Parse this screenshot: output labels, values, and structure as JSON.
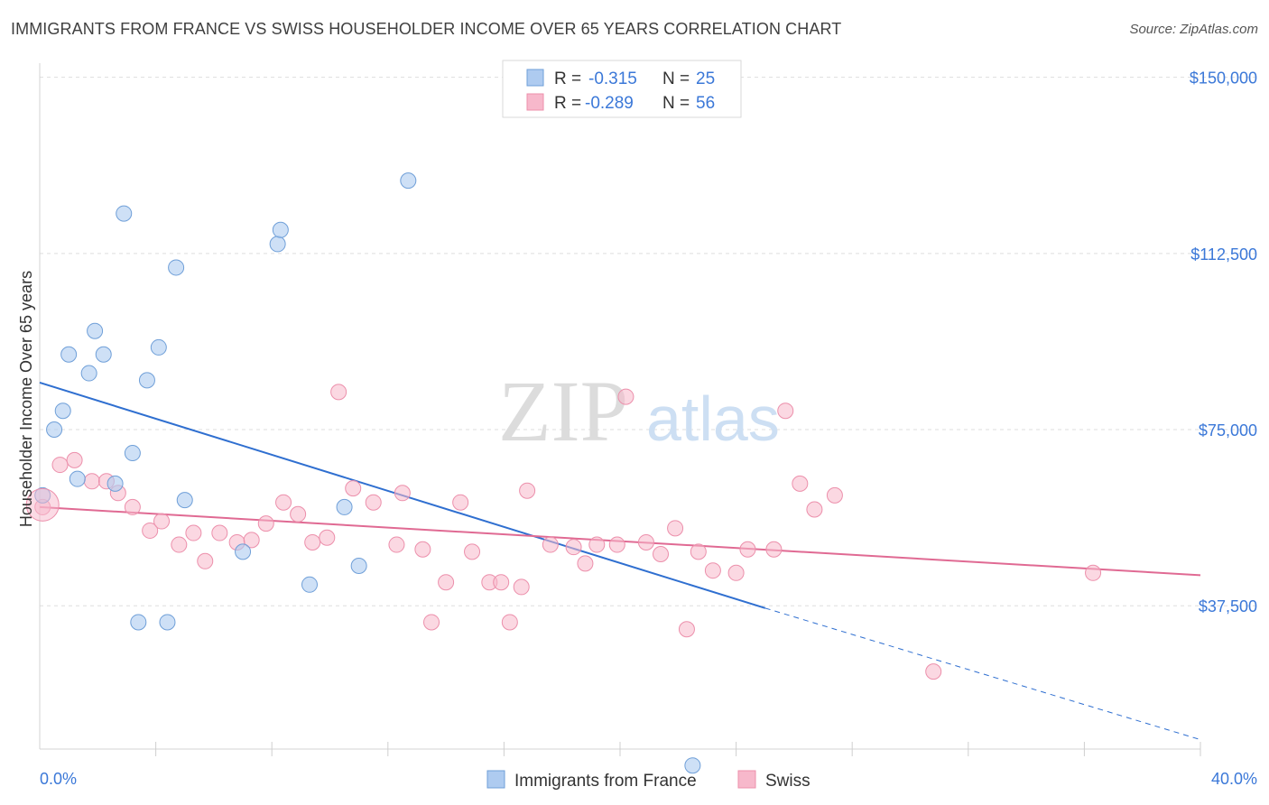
{
  "header": {
    "title": "IMMIGRANTS FROM FRANCE VS SWISS HOUSEHOLDER INCOME OVER 65 YEARS CORRELATION CHART",
    "source": "Source: ZipAtlas.com"
  },
  "watermark": {
    "zip": "ZIP",
    "atlas": "atlas"
  },
  "legend": {
    "rows": [
      {
        "r_label": "R =",
        "r_value": "-0.315",
        "n_label": "N =",
        "n_value": "25",
        "color": "#aecbf0"
      },
      {
        "r_label": "R =",
        "r_value": "-0.289",
        "n_label": "N =",
        "n_value": "56",
        "color": "#f7b8cb"
      }
    ]
  },
  "chart_data": {
    "type": "scatter",
    "title": "IMMIGRANTS FROM FRANCE VS SWISS HOUSEHOLDER INCOME OVER 65 YEARS CORRELATION CHART",
    "xlabel": "",
    "ylabel": "Householder Income Over 65 years",
    "xlim": [
      0,
      40
    ],
    "ylim": [
      7000,
      153000
    ],
    "x_tick_labels": [
      "0.0%",
      "40.0%"
    ],
    "y_ticks": [
      {
        "value": 150000,
        "label": "$150,000"
      },
      {
        "value": 112500,
        "label": "$112,500"
      },
      {
        "value": 75000,
        "label": "$75,000"
      },
      {
        "value": 37500,
        "label": "$37,500"
      }
    ],
    "grid": "horizontal-dashed",
    "legend_position": "top-center",
    "series": [
      {
        "name": "Immigrants from France",
        "color": "#aecbf0",
        "stroke": "#6f9fd8",
        "trend_color": "#2f6fd0",
        "trend": {
          "x0": 0,
          "y0": 85000,
          "x1": 25,
          "y1": 37000,
          "dashed_to_x": 40,
          "dashed_to_y": 9000
        },
        "points": [
          [
            0.1,
            61000
          ],
          [
            0.5,
            75000
          ],
          [
            0.8,
            79000
          ],
          [
            1.0,
            91000
          ],
          [
            1.3,
            64500
          ],
          [
            1.7,
            87000
          ],
          [
            1.9,
            96000
          ],
          [
            2.2,
            91000
          ],
          [
            2.6,
            63500
          ],
          [
            2.9,
            121000
          ],
          [
            3.2,
            70000
          ],
          [
            3.4,
            34000
          ],
          [
            3.7,
            85500
          ],
          [
            4.1,
            92500
          ],
          [
            4.4,
            34000
          ],
          [
            4.7,
            109500
          ],
          [
            5.0,
            60000
          ],
          [
            7.0,
            49000
          ],
          [
            8.2,
            114500
          ],
          [
            8.3,
            117500
          ],
          [
            9.3,
            42000
          ],
          [
            10.5,
            58500
          ],
          [
            11.0,
            46000
          ],
          [
            12.7,
            128000
          ],
          [
            22.5,
            3500
          ]
        ]
      },
      {
        "name": "Swiss",
        "color": "#f7b8cb",
        "stroke": "#ec8fab",
        "trend_color": "#e06a93",
        "trend": {
          "x0": 0,
          "y0": 58500,
          "x1": 40,
          "y1": 44000
        },
        "points": [
          [
            0.1,
            58500
          ],
          [
            0.7,
            67500
          ],
          [
            1.2,
            68500
          ],
          [
            1.8,
            64000
          ],
          [
            2.3,
            64000
          ],
          [
            2.7,
            61500
          ],
          [
            3.2,
            58500
          ],
          [
            3.8,
            53500
          ],
          [
            4.2,
            55500
          ],
          [
            4.8,
            50500
          ],
          [
            5.3,
            53000
          ],
          [
            5.7,
            47000
          ],
          [
            6.2,
            53000
          ],
          [
            6.8,
            51000
          ],
          [
            7.3,
            51500
          ],
          [
            7.8,
            55000
          ],
          [
            8.4,
            59500
          ],
          [
            8.9,
            57000
          ],
          [
            9.4,
            51000
          ],
          [
            9.9,
            52000
          ],
          [
            10.3,
            83000
          ],
          [
            10.8,
            62500
          ],
          [
            11.5,
            59500
          ],
          [
            12.3,
            50500
          ],
          [
            12.5,
            61500
          ],
          [
            13.2,
            49500
          ],
          [
            13.5,
            34000
          ],
          [
            14.0,
            42500
          ],
          [
            14.5,
            59500
          ],
          [
            14.9,
            49000
          ],
          [
            15.5,
            42500
          ],
          [
            15.9,
            42500
          ],
          [
            16.2,
            34000
          ],
          [
            16.6,
            41500
          ],
          [
            16.8,
            62000
          ],
          [
            17.6,
            50500
          ],
          [
            18.4,
            50000
          ],
          [
            18.8,
            46500
          ],
          [
            19.2,
            50500
          ],
          [
            19.9,
            50500
          ],
          [
            20.2,
            82000
          ],
          [
            20.9,
            51000
          ],
          [
            21.4,
            48500
          ],
          [
            21.9,
            54000
          ],
          [
            22.3,
            32500
          ],
          [
            22.7,
            49000
          ],
          [
            23.2,
            45000
          ],
          [
            24.0,
            44500
          ],
          [
            24.4,
            49500
          ],
          [
            25.3,
            49500
          ],
          [
            25.7,
            79000
          ],
          [
            26.2,
            63500
          ],
          [
            26.7,
            58000
          ],
          [
            27.4,
            61000
          ],
          [
            30.8,
            23500
          ],
          [
            36.3,
            44500
          ]
        ]
      }
    ]
  }
}
